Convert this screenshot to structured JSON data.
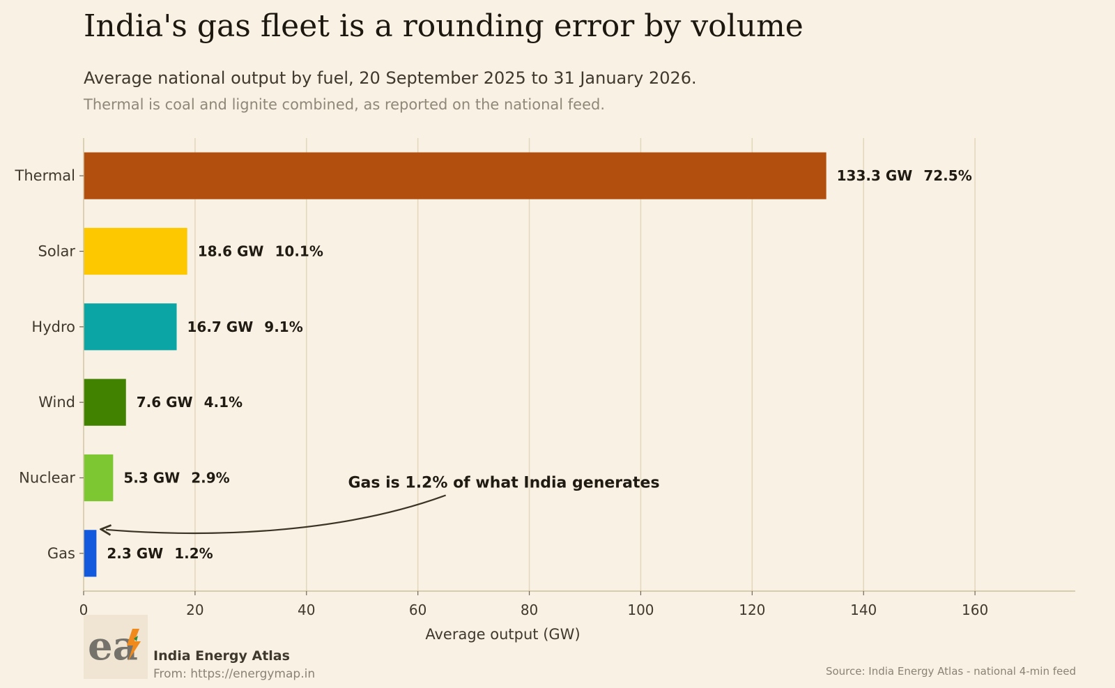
{
  "header": {
    "title": "India's gas fleet is a rounding error by volume",
    "subtitle": "Average national output by fuel, 20 September 2025 to 31 January 2026.",
    "note": "Thermal is coal and lignite combined, as reported on the national feed."
  },
  "chart_data": {
    "type": "bar",
    "orientation": "horizontal",
    "categories": [
      "Thermal",
      "Solar",
      "Hydro",
      "Wind",
      "Nuclear",
      "Gas"
    ],
    "values": [
      133.3,
      18.6,
      16.7,
      7.6,
      5.3,
      2.3
    ],
    "value_labels": [
      "133.3 GW",
      "18.6 GW",
      "16.7 GW",
      "7.6 GW",
      "5.3 GW",
      "2.3 GW"
    ],
    "share_labels": [
      "72.5%",
      "10.1%",
      "9.1%",
      "4.1%",
      "2.9%",
      "1.2%"
    ],
    "colors": [
      "#b24f0e",
      "#fdc800",
      "#0ba5a5",
      "#418200",
      "#7dc733",
      "#1259de"
    ],
    "xlabel": "Average output (GW)",
    "xlim": [
      0,
      178
    ],
    "xticks": [
      0,
      20,
      40,
      60,
      80,
      100,
      120,
      140,
      160
    ],
    "grid": true,
    "annotation": {
      "text": "Gas is 1.2% of what India generates",
      "target_category": "Gas",
      "text_x": 723,
      "arrow_start_x": 65,
      "arrow_end_x": 4
    }
  },
  "footer": {
    "brand": "India Energy Atlas",
    "from": "From: https://energymap.in",
    "source": "Source: India Energy Atlas - national 4-min feed",
    "logo_text": "ea"
  }
}
